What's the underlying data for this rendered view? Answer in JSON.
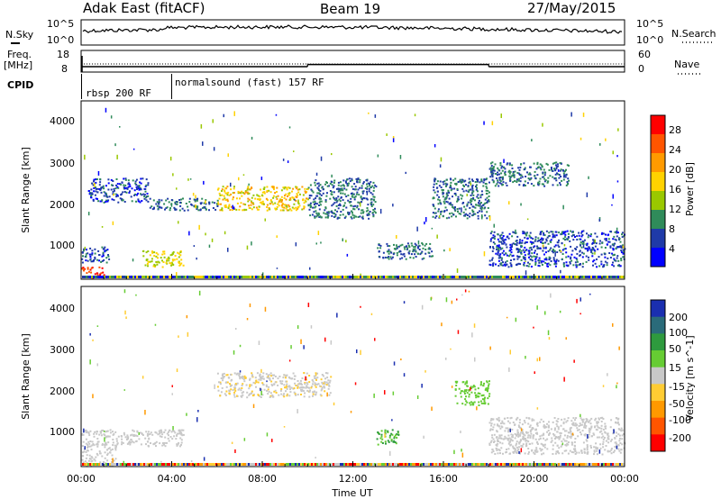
{
  "header": {
    "station": "Adak East (fitACF)",
    "beam": "Beam 19",
    "date": "27/May/2015"
  },
  "noise_panel": {
    "left_label": "N.Sky",
    "right_label": "N.Search",
    "scale_top": "10^5",
    "scale_bottom": "10^0"
  },
  "freq_panel": {
    "label_line1": "Freq.",
    "label_line2": "[MHz]",
    "left_ticks": [
      "18",
      "8"
    ],
    "right_ticks": [
      "60",
      "0"
    ],
    "right_label": "Nave"
  },
  "cpid_panel": {
    "label": "CPID",
    "segments": [
      {
        "text": "rbsp 200 RF",
        "start_hour": 0
      },
      {
        "text": "normalsound (fast) 157 RF",
        "start_hour": 4
      }
    ]
  },
  "power_panel": {
    "ylabel": "Slant Range [km]",
    "yticks": [
      "4000",
      "3000",
      "2000",
      "1000"
    ],
    "colorbar_label": "Power [dB]",
    "colorbar_ticks": [
      "28",
      "24",
      "20",
      "16",
      "12",
      "8",
      "4"
    ],
    "colorbar_colors": [
      "#ff0000",
      "#ff5500",
      "#ff9a00",
      "#ffd200",
      "#9ac800",
      "#2f8b5a",
      "#1f3aa8",
      "#0000ff"
    ]
  },
  "velocity_panel": {
    "ylabel": "Slant Range [km]",
    "yticks": [
      "4000",
      "3000",
      "2000",
      "1000"
    ],
    "colorbar_label": "Velocity [m s^-1]",
    "colorbar_ticks": [
      "200",
      "100",
      "50",
      "15",
      "-15",
      "-50",
      "-100",
      "-200"
    ],
    "colorbar_colors": [
      "#1a2fb0",
      "#2a6b7a",
      "#2e9a3e",
      "#66cc33",
      "#c8c8c8",
      "#ffcc33",
      "#ff9900",
      "#ff5500",
      "#ff0000"
    ]
  },
  "xaxis": {
    "label": "Time UT",
    "ticks": [
      "00:00",
      "04:00",
      "08:00",
      "12:00",
      "16:00",
      "20:00",
      "00:00"
    ]
  },
  "chart_data": {
    "type": "heatmap",
    "title": "Adak East (fitACF)  Beam 19  27/May/2015",
    "xlabel": "Time UT",
    "ylabel": "Slant Range [km]",
    "xlim_hours": [
      0,
      24
    ],
    "ylim_km": [
      180,
      4600
    ],
    "frequency_mhz": [
      {
        "start_hour": 0,
        "end_hour": 10.0,
        "freq": 10.5
      },
      {
        "start_hour": 10.0,
        "end_hour": 18.0,
        "freq": 11.5
      },
      {
        "start_hour": 18.0,
        "end_hour": 24.0,
        "freq": 10.5
      }
    ],
    "power_regions_db": [
      {
        "t": [
          0.0,
          1.0
        ],
        "r": [
          200,
          500
        ],
        "db": 28
      },
      {
        "t": [
          0.0,
          1.2
        ],
        "r": [
          600,
          1000
        ],
        "db": 6
      },
      {
        "t": [
          2.7,
          4.5
        ],
        "r": [
          500,
          900
        ],
        "db": 16
      },
      {
        "t": [
          0.3,
          3.0
        ],
        "r": [
          2100,
          2700
        ],
        "db": 6
      },
      {
        "t": [
          3.0,
          6.0
        ],
        "r": [
          1900,
          2200
        ],
        "db": 8
      },
      {
        "t": [
          6.0,
          10.0
        ],
        "r": [
          1900,
          2500
        ],
        "db": 18
      },
      {
        "t": [
          10.0,
          13.0
        ],
        "r": [
          1700,
          2700
        ],
        "db": 8
      },
      {
        "t": [
          13.0,
          15.5
        ],
        "r": [
          700,
          1100
        ],
        "db": 8
      },
      {
        "t": [
          15.5,
          18.0
        ],
        "r": [
          1700,
          2700
        ],
        "db": 8
      },
      {
        "t": [
          18.0,
          21.5
        ],
        "r": [
          2500,
          3100
        ],
        "db": 8
      },
      {
        "t": [
          18.0,
          24.0
        ],
        "r": [
          500,
          1400
        ],
        "db": 6
      }
    ],
    "velocity_regions_ms": [
      {
        "t": [
          0.0,
          1.5
        ],
        "r": [
          200,
          1100
        ],
        "v": 0
      },
      {
        "t": [
          1.5,
          4.5
        ],
        "r": [
          700,
          1100
        ],
        "v": 0
      },
      {
        "t": [
          6.0,
          11.0
        ],
        "r": [
          1900,
          2500
        ],
        "v": -10
      },
      {
        "t": [
          13.0,
          14.0
        ],
        "r": [
          700,
          1100
        ],
        "v": 50
      },
      {
        "t": [
          16.5,
          18.0
        ],
        "r": [
          1700,
          2300
        ],
        "v": 30
      },
      {
        "t": [
          18.0,
          24.0
        ],
        "r": [
          500,
          1400
        ],
        "v": 0
      }
    ]
  }
}
